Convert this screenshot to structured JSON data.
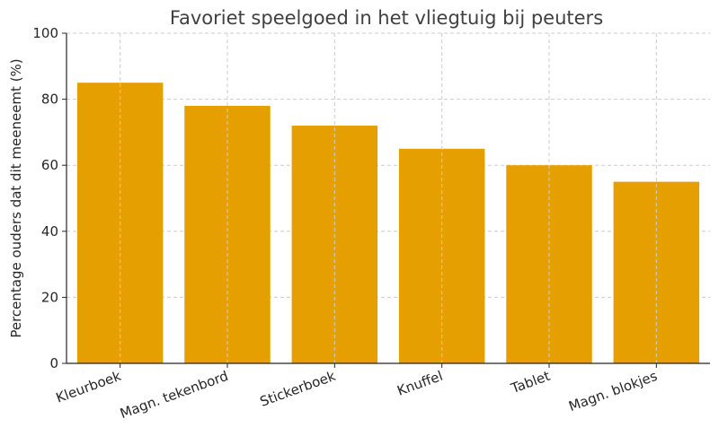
{
  "chart_data": {
    "type": "bar",
    "title": "Favoriet speelgoed in het vliegtuig bij peuters",
    "xlabel": "",
    "ylabel": "Percentage ouders dat dit meeneemt (%)",
    "categories": [
      "Kleurboek",
      "Magn. tekenbord",
      "Stickerboek",
      "Knuffel",
      "Tablet",
      "Magn. blokjes"
    ],
    "values": [
      85,
      78,
      72,
      65,
      60,
      55
    ],
    "ylim": [
      0,
      100
    ],
    "yticks": [
      0,
      20,
      40,
      60,
      80,
      100
    ],
    "grid": true,
    "bar_color": "#E5A000"
  }
}
